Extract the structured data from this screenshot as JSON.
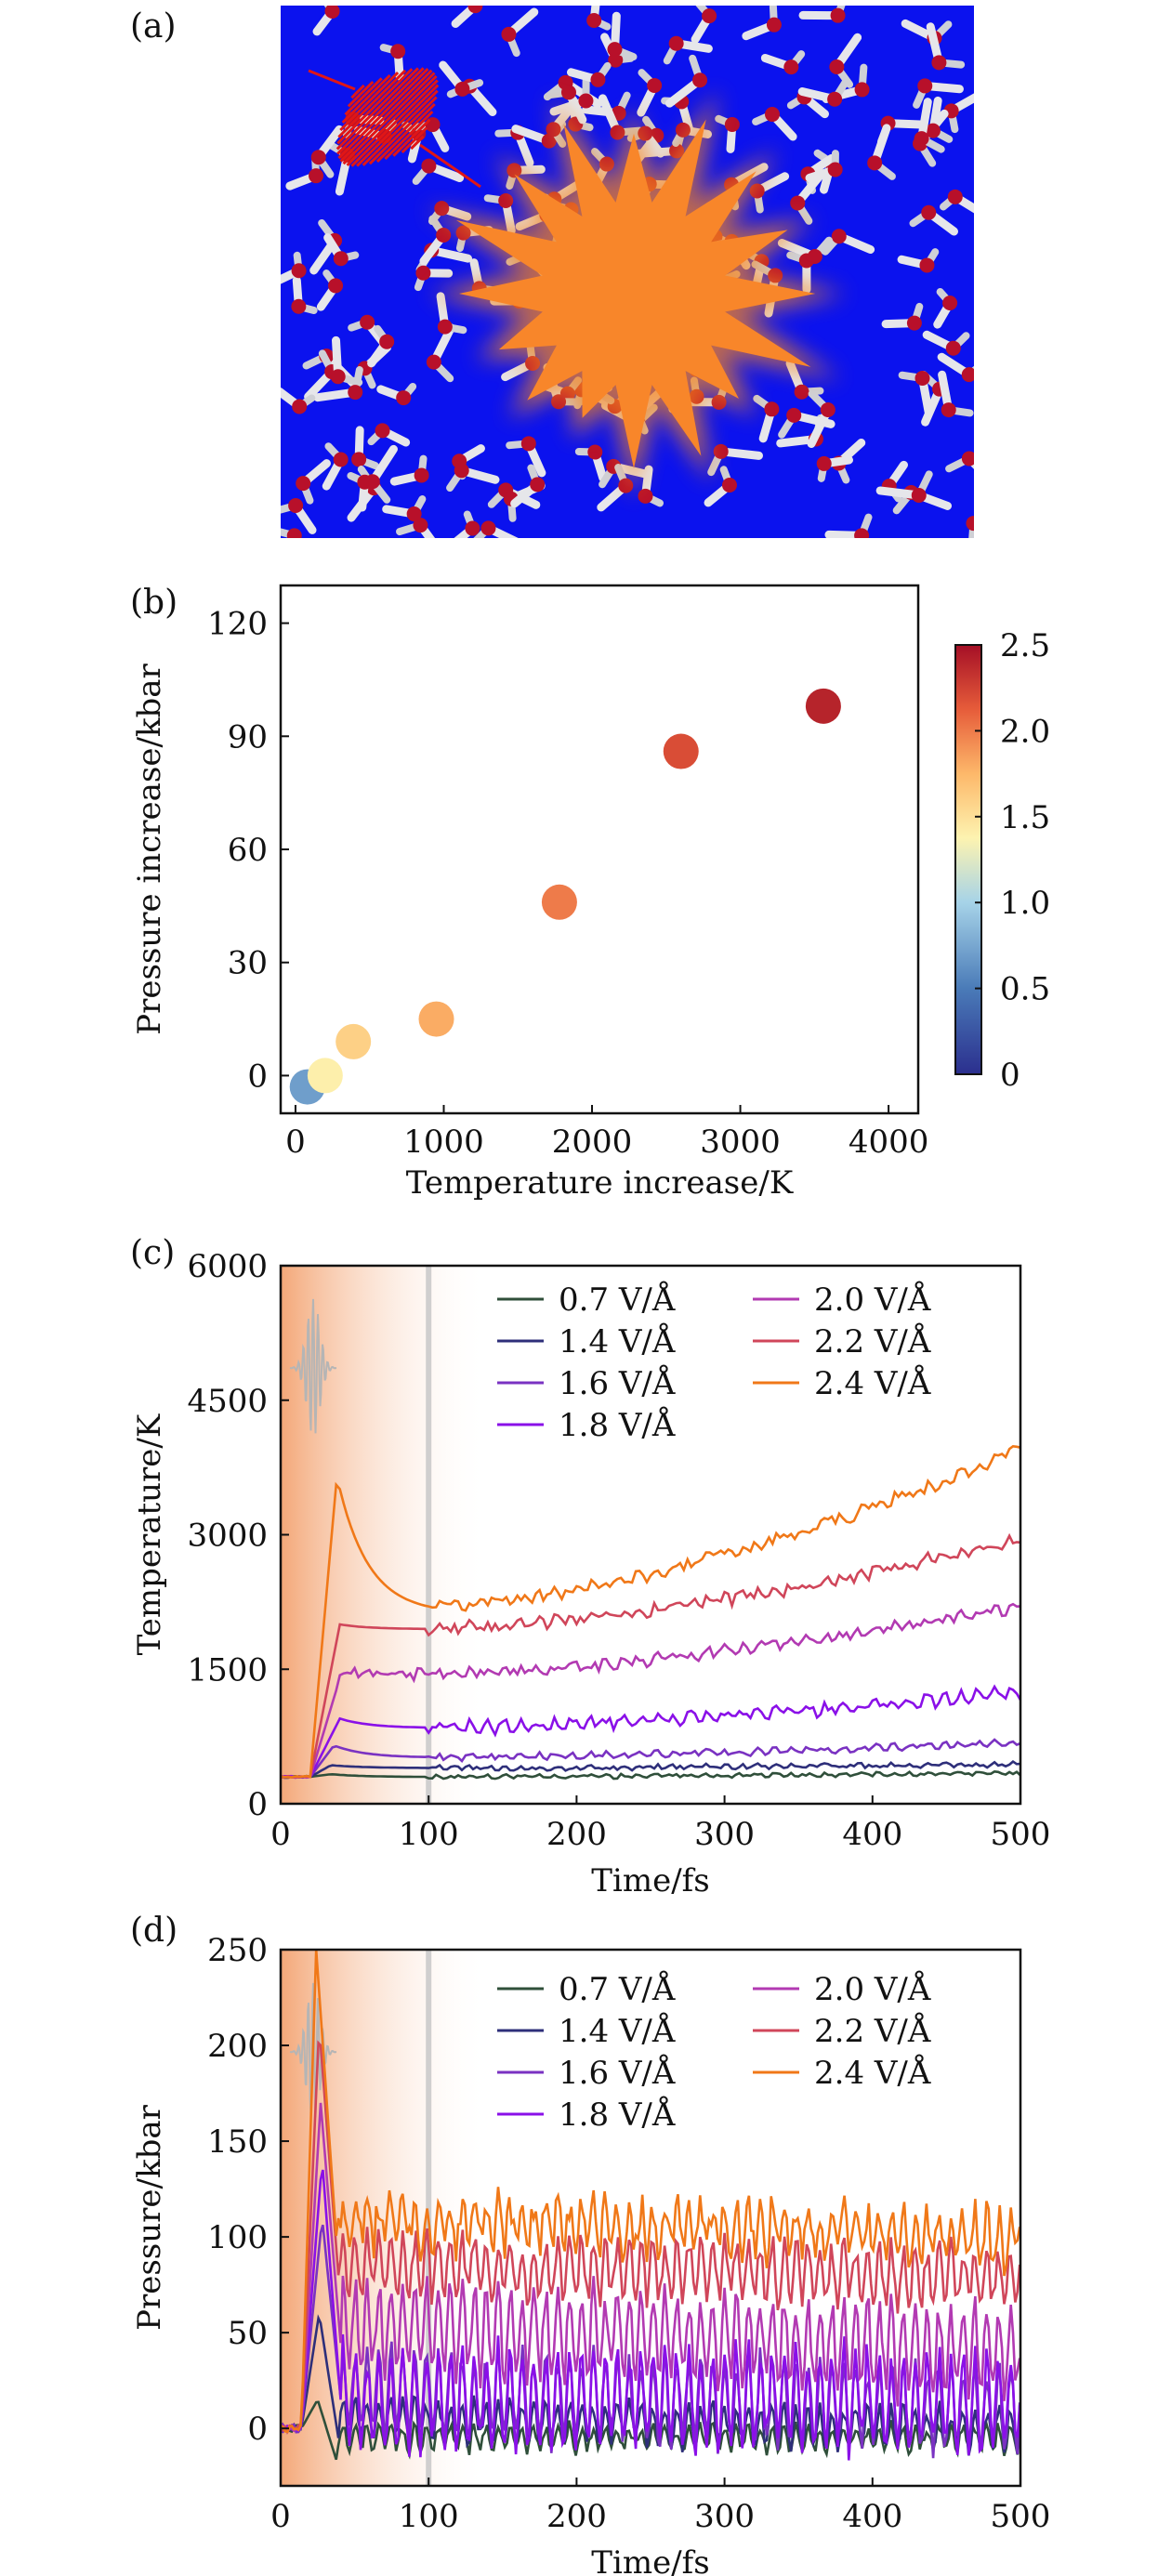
{
  "panels": {
    "a": {
      "label": "(a)"
    },
    "b": {
      "label": "(b)"
    },
    "c": {
      "label": "(c)"
    },
    "d": {
      "label": "(d)"
    }
  },
  "colors": {
    "background_blue": "#0b12ee",
    "burst_orange": "#f5841f",
    "pulse_red": "#e01616",
    "oxygen": "#b8102a",
    "hydrogen": "#e6e6ea",
    "gray_marker": "#c9c9c9"
  },
  "chart_data": [
    {
      "panel": "b",
      "type": "scatter",
      "xlabel": "Temperature increase/K",
      "ylabel": "Pressure increase/kbar",
      "xlim": [
        -100,
        4200
      ],
      "ylim": [
        -10,
        130
      ],
      "xticks": [
        0,
        1000,
        2000,
        3000,
        4000
      ],
      "yticks": [
        0,
        30,
        60,
        90,
        120
      ],
      "colorbar": {
        "ticks": [
          "0",
          "0.5",
          "1.0",
          "1.5",
          "2.0",
          "2.5"
        ],
        "range": [
          0,
          2.5
        ]
      },
      "points": [
        {
          "x": 80,
          "y": -3,
          "c": 0.7
        },
        {
          "x": 200,
          "y": 0,
          "c": 1.4
        },
        {
          "x": 390,
          "y": 9,
          "c": 1.6
        },
        {
          "x": 950,
          "y": 15,
          "c": 1.8
        },
        {
          "x": 1780,
          "y": 46,
          "c": 2.0
        },
        {
          "x": 2600,
          "y": 86,
          "c": 2.2
        },
        {
          "x": 3560,
          "y": 98,
          "c": 2.4
        }
      ]
    },
    {
      "panel": "c",
      "type": "line",
      "xlabel": "Time/fs",
      "ylabel": "Temperature/K",
      "xlim": [
        0,
        500
      ],
      "ylim": [
        0,
        6000
      ],
      "xticks": [
        0,
        100,
        200,
        300,
        400,
        500
      ],
      "yticks": [
        0,
        1500,
        3000,
        4500,
        6000
      ],
      "legend": "top-right",
      "series": [
        {
          "name": "0.7 V/Å",
          "color": "#2f4f3a",
          "pre": 300,
          "peakT": 34,
          "peak": 330,
          "start": 300,
          "end": 340,
          "noise": 20,
          "wave": 10
        },
        {
          "name": "1.4 V/Å",
          "color": "#2e2f7a",
          "pre": 300,
          "peakT": 34,
          "peak": 430,
          "start": 400,
          "end": 440,
          "noise": 25,
          "wave": 12
        },
        {
          "name": "1.6 V/Å",
          "color": "#7a32c2",
          "pre": 300,
          "peakT": 36,
          "peak": 650,
          "start": 520,
          "end": 680,
          "noise": 30,
          "wave": 20
        },
        {
          "name": "1.8 V/Å",
          "color": "#8a10e8",
          "pre": 300,
          "peakT": 40,
          "peak": 950,
          "start": 850,
          "end": 1250,
          "noise": 50,
          "wave": 45
        },
        {
          "name": "2.0 V/Å",
          "color": "#b23ab2",
          "pre": 300,
          "peakT": 40,
          "peak": 1400,
          "start": 1450,
          "end": 2200,
          "noise": 55,
          "wave": 30
        },
        {
          "name": "2.2 V/Å",
          "color": "#d0465a",
          "pre": 300,
          "peakT": 40,
          "peak": 2000,
          "start": 1950,
          "end": 2950,
          "noise": 60,
          "wave": 30
        },
        {
          "name": "2.4 V/Å",
          "color": "#f07818",
          "pre": 300,
          "peakT": 38,
          "peak": 3650,
          "start": 2200,
          "end": 3950,
          "noise": 70,
          "wave": 20
        }
      ]
    },
    {
      "panel": "d",
      "type": "line",
      "xlabel": "Time/fs",
      "ylabel": "Pressure/kbar",
      "xlim": [
        0,
        500
      ],
      "ylim": [
        -30,
        250
      ],
      "xticks": [
        0,
        100,
        200,
        300,
        400,
        500
      ],
      "yticks": [
        0,
        50,
        100,
        150,
        200,
        250
      ],
      "legend": "top-right",
      "series": [
        {
          "name": "0.7 V/Å",
          "color": "#2f4f3a",
          "pre": 0,
          "peakT": 25,
          "peak": 15,
          "start": -5,
          "end": -5,
          "amp": 6,
          "noise": 3
        },
        {
          "name": "1.4 V/Å",
          "color": "#2e2f7a",
          "pre": 0,
          "peakT": 26,
          "peak": 60,
          "start": 5,
          "end": 0,
          "amp": 10,
          "noise": 4
        },
        {
          "name": "1.6 V/Å",
          "color": "#7a32c2",
          "pre": 0,
          "peakT": 28,
          "peak": 110,
          "start": 20,
          "end": 10,
          "amp": 22,
          "noise": 5
        },
        {
          "name": "1.8 V/Å",
          "color": "#8a10e8",
          "pre": 0,
          "peakT": 28,
          "peak": 140,
          "start": 15,
          "end": 15,
          "amp": 25,
          "noise": 6
        },
        {
          "name": "2.0 V/Å",
          "color": "#b23ab2",
          "pre": 0,
          "peakT": 27,
          "peak": 170,
          "start": 55,
          "end": 40,
          "amp": 22,
          "noise": 6
        },
        {
          "name": "2.2 V/Å",
          "color": "#d0465a",
          "pre": 0,
          "peakT": 26,
          "peak": 210,
          "start": 85,
          "end": 80,
          "amp": 15,
          "noise": 6
        },
        {
          "name": "2.4 V/Å",
          "color": "#f07818",
          "pre": 0,
          "peakT": 24,
          "peak": 250,
          "start": 110,
          "end": 100,
          "amp": 12,
          "noise": 8
        }
      ]
    }
  ]
}
